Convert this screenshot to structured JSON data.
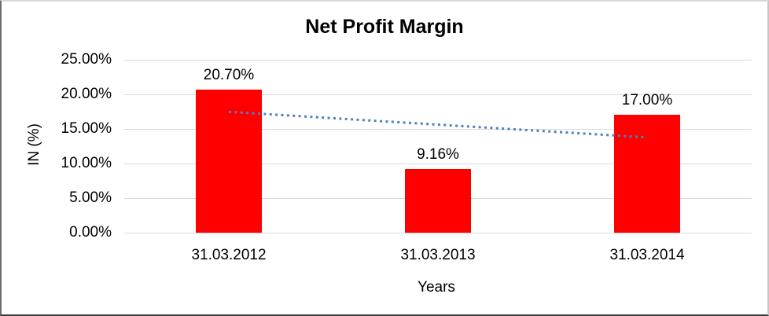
{
  "chart_data": {
    "type": "bar",
    "title": "Net Profit Margin",
    "xlabel": "Years",
    "ylabel": "IN (%)",
    "categories": [
      "31.03.2012",
      "31.03.2013",
      "31.03.2014"
    ],
    "values": [
      20.7,
      9.16,
      17.0
    ],
    "data_labels": [
      "20.70%",
      "9.16%",
      "17.00%"
    ],
    "series_name": "Net Profit Margin",
    "bar_color": "#ff0000",
    "y_ticks": [
      {
        "value": 0,
        "label": "0.00%"
      },
      {
        "value": 5,
        "label": "5.00%"
      },
      {
        "value": 10,
        "label": "10.00%"
      },
      {
        "value": 15,
        "label": "15.00%"
      },
      {
        "value": 20,
        "label": "20.00%"
      },
      {
        "value": 25,
        "label": "25.00%"
      }
    ],
    "ylim": [
      0,
      25
    ],
    "grid": true,
    "gridline_color": "#d9d9d9",
    "legend": false,
    "trendline": {
      "type": "linear",
      "style": "dotted",
      "color": "#4f81bd",
      "endpoint_values": [
        17.47,
        13.77
      ]
    }
  }
}
